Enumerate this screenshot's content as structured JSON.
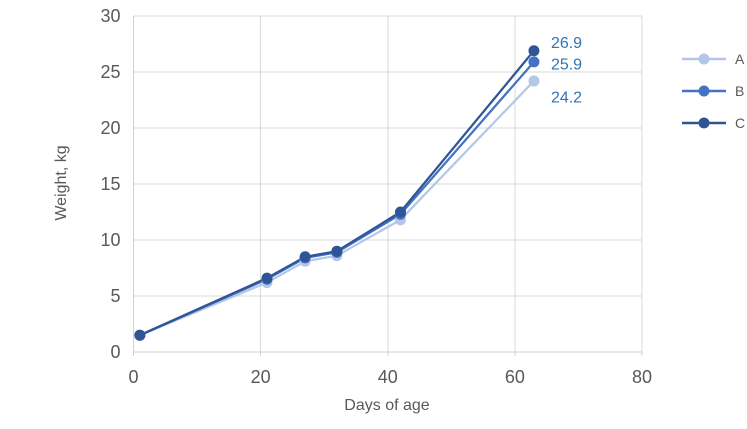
{
  "chart_data": {
    "type": "line",
    "title": "",
    "xlabel": "Days of age",
    "ylabel": "Weight, kg",
    "x": [
      1,
      21,
      27,
      32,
      42,
      63
    ],
    "series": [
      {
        "name": "A",
        "color": "#b4c7e7",
        "values": [
          1.5,
          6.2,
          8.1,
          8.6,
          11.8,
          24.2
        ],
        "end_label": "24.2"
      },
      {
        "name": "B",
        "color": "#4472c4",
        "values": [
          1.5,
          6.5,
          8.4,
          8.9,
          12.3,
          25.9
        ],
        "end_label": "25.9"
      },
      {
        "name": "C",
        "color": "#2f5597",
        "values": [
          1.5,
          6.6,
          8.5,
          9.0,
          12.5,
          26.9
        ],
        "end_label": "26.9"
      }
    ],
    "xlim": [
      0,
      80
    ],
    "ylim": [
      0,
      30
    ],
    "x_ticks": [
      "0",
      "20",
      "40",
      "60",
      "80"
    ],
    "y_ticks": [
      "0",
      "5",
      "10",
      "15",
      "20",
      "25",
      "30"
    ],
    "grid": true,
    "legend_position": "right",
    "colors": {
      "data_label": "#2e75b6",
      "axis_text": "#595959",
      "gridline": "#d9d9d9",
      "axis_line": "#d2d2d2"
    }
  }
}
